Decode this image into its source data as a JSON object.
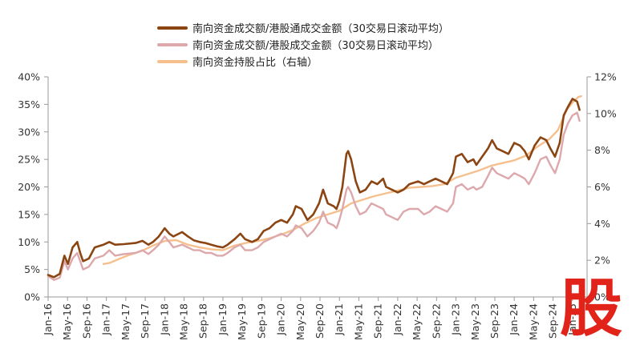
{
  "chart_data": {
    "type": "line",
    "title": "",
    "xlabel": "",
    "ylabel": "",
    "ylim": [
      0,
      40
    ],
    "y2lim": [
      0,
      12
    ],
    "y_ticks": [
      "0%",
      "5%",
      "10%",
      "15%",
      "20%",
      "25%",
      "30%",
      "35%",
      "40%"
    ],
    "y2_ticks": [
      "0%",
      "2%",
      "4%",
      "6%",
      "8%",
      "10%",
      "12%"
    ],
    "x_ticks": [
      "Jan-16",
      "May-16",
      "Sep-16",
      "Jan-17",
      "May-17",
      "Sep-17",
      "Jan-18",
      "May-18",
      "Sep-18",
      "Jan-19",
      "May-19",
      "Sep-19",
      "Jan-20",
      "May-20",
      "Sep-20",
      "Jan-21",
      "May-21",
      "Sep-21",
      "Jan-22",
      "May-22",
      "Sep-22",
      "Jan-23",
      "May-23",
      "Sep-23",
      "Jan-24",
      "May-24",
      "Sep-24",
      "Jan-25"
    ],
    "x_range": [
      2016.0,
      2025.25
    ],
    "series": [
      {
        "name": "南向资金成交额/港股通成交金额（30交易日滚动平均）",
        "axis": "left",
        "color": "#8b4513",
        "points": [
          [
            2016.0,
            4.0
          ],
          [
            2016.1,
            3.6
          ],
          [
            2016.2,
            4.2
          ],
          [
            2016.28,
            7.5
          ],
          [
            2016.34,
            6.0
          ],
          [
            2016.42,
            9.0
          ],
          [
            2016.5,
            10.0
          ],
          [
            2016.55,
            8.0
          ],
          [
            2016.6,
            6.5
          ],
          [
            2016.7,
            7.0
          ],
          [
            2016.8,
            9.0
          ],
          [
            2016.95,
            9.5
          ],
          [
            2017.05,
            10.0
          ],
          [
            2017.15,
            9.5
          ],
          [
            2017.3,
            9.6
          ],
          [
            2017.5,
            9.8
          ],
          [
            2017.62,
            10.2
          ],
          [
            2017.72,
            9.5
          ],
          [
            2017.8,
            10.0
          ],
          [
            2017.9,
            11.0
          ],
          [
            2018.0,
            12.5
          ],
          [
            2018.08,
            11.5
          ],
          [
            2018.15,
            11.0
          ],
          [
            2018.3,
            11.8
          ],
          [
            2018.4,
            11.0
          ],
          [
            2018.5,
            10.3
          ],
          [
            2018.6,
            10.0
          ],
          [
            2018.7,
            9.8
          ],
          [
            2018.8,
            9.5
          ],
          [
            2018.9,
            9.2
          ],
          [
            2019.0,
            9.0
          ],
          [
            2019.08,
            9.5
          ],
          [
            2019.2,
            10.5
          ],
          [
            2019.3,
            11.5
          ],
          [
            2019.38,
            10.5
          ],
          [
            2019.5,
            10.0
          ],
          [
            2019.6,
            10.5
          ],
          [
            2019.7,
            12.0
          ],
          [
            2019.8,
            12.5
          ],
          [
            2019.9,
            13.5
          ],
          [
            2020.0,
            14.0
          ],
          [
            2020.1,
            13.5
          ],
          [
            2020.2,
            15.0
          ],
          [
            2020.25,
            16.5
          ],
          [
            2020.35,
            16.0
          ],
          [
            2020.45,
            14.0
          ],
          [
            2020.55,
            15.0
          ],
          [
            2020.65,
            17.0
          ],
          [
            2020.72,
            19.5
          ],
          [
            2020.8,
            17.0
          ],
          [
            2020.9,
            16.5
          ],
          [
            2020.95,
            16.0
          ],
          [
            2021.0,
            17.5
          ],
          [
            2021.05,
            20.0
          ],
          [
            2021.12,
            26.0
          ],
          [
            2021.15,
            26.5
          ],
          [
            2021.2,
            25.0
          ],
          [
            2021.28,
            21.0
          ],
          [
            2021.35,
            19.0
          ],
          [
            2021.45,
            19.5
          ],
          [
            2021.55,
            21.0
          ],
          [
            2021.65,
            20.5
          ],
          [
            2021.75,
            21.5
          ],
          [
            2021.8,
            20.0
          ],
          [
            2021.9,
            19.5
          ],
          [
            2022.0,
            19.0
          ],
          [
            2022.1,
            19.5
          ],
          [
            2022.2,
            20.5
          ],
          [
            2022.35,
            21.0
          ],
          [
            2022.45,
            20.5
          ],
          [
            2022.55,
            21.0
          ],
          [
            2022.65,
            21.5
          ],
          [
            2022.75,
            21.0
          ],
          [
            2022.85,
            20.5
          ],
          [
            2022.95,
            22.5
          ],
          [
            2023.0,
            25.5
          ],
          [
            2023.1,
            26.0
          ],
          [
            2023.2,
            24.5
          ],
          [
            2023.3,
            25.0
          ],
          [
            2023.35,
            24.0
          ],
          [
            2023.45,
            25.5
          ],
          [
            2023.55,
            27.0
          ],
          [
            2023.62,
            28.5
          ],
          [
            2023.7,
            27.0
          ],
          [
            2023.8,
            26.5
          ],
          [
            2023.9,
            26.0
          ],
          [
            2024.0,
            28.0
          ],
          [
            2024.1,
            27.5
          ],
          [
            2024.18,
            26.5
          ],
          [
            2024.25,
            25.0
          ],
          [
            2024.35,
            27.5
          ],
          [
            2024.45,
            29.0
          ],
          [
            2024.55,
            28.5
          ],
          [
            2024.62,
            27.0
          ],
          [
            2024.7,
            25.5
          ],
          [
            2024.78,
            28.0
          ],
          [
            2024.85,
            33.0
          ],
          [
            2024.92,
            34.5
          ],
          [
            2025.0,
            36.0
          ],
          [
            2025.08,
            35.5
          ],
          [
            2025.12,
            34.0
          ]
        ]
      },
      {
        "name": "南向资金成交额/港股成交金额（30交易日滚动平均）",
        "axis": "left",
        "color": "#dda8ac",
        "points": [
          [
            2016.0,
            3.8
          ],
          [
            2016.1,
            3.1
          ],
          [
            2016.2,
            3.5
          ],
          [
            2016.28,
            6.5
          ],
          [
            2016.34,
            5.0
          ],
          [
            2016.42,
            7.0
          ],
          [
            2016.5,
            8.0
          ],
          [
            2016.55,
            6.5
          ],
          [
            2016.6,
            5.0
          ],
          [
            2016.7,
            5.5
          ],
          [
            2016.8,
            7.0
          ],
          [
            2016.95,
            7.5
          ],
          [
            2017.05,
            8.5
          ],
          [
            2017.15,
            7.5
          ],
          [
            2017.3,
            7.8
          ],
          [
            2017.5,
            8.0
          ],
          [
            2017.62,
            8.5
          ],
          [
            2017.72,
            7.8
          ],
          [
            2017.8,
            8.5
          ],
          [
            2017.9,
            9.5
          ],
          [
            2018.0,
            11.0
          ],
          [
            2018.08,
            10.0
          ],
          [
            2018.15,
            9.0
          ],
          [
            2018.3,
            9.5
          ],
          [
            2018.4,
            9.0
          ],
          [
            2018.5,
            8.5
          ],
          [
            2018.6,
            8.5
          ],
          [
            2018.7,
            8.0
          ],
          [
            2018.8,
            8.0
          ],
          [
            2018.9,
            7.5
          ],
          [
            2019.0,
            7.5
          ],
          [
            2019.08,
            8.0
          ],
          [
            2019.2,
            9.0
          ],
          [
            2019.3,
            9.5
          ],
          [
            2019.38,
            8.5
          ],
          [
            2019.5,
            8.5
          ],
          [
            2019.6,
            9.0
          ],
          [
            2019.7,
            10.0
          ],
          [
            2019.8,
            10.5
          ],
          [
            2019.9,
            11.0
          ],
          [
            2020.0,
            11.5
          ],
          [
            2020.1,
            11.0
          ],
          [
            2020.2,
            12.0
          ],
          [
            2020.25,
            13.0
          ],
          [
            2020.35,
            12.5
          ],
          [
            2020.45,
            11.0
          ],
          [
            2020.55,
            12.0
          ],
          [
            2020.65,
            13.5
          ],
          [
            2020.72,
            15.5
          ],
          [
            2020.8,
            13.5
          ],
          [
            2020.9,
            13.0
          ],
          [
            2020.95,
            12.5
          ],
          [
            2021.0,
            14.0
          ],
          [
            2021.05,
            16.0
          ],
          [
            2021.12,
            19.5
          ],
          [
            2021.15,
            20.0
          ],
          [
            2021.2,
            19.0
          ],
          [
            2021.28,
            16.5
          ],
          [
            2021.35,
            15.0
          ],
          [
            2021.45,
            15.5
          ],
          [
            2021.55,
            17.0
          ],
          [
            2021.65,
            16.5
          ],
          [
            2021.75,
            16.0
          ],
          [
            2021.8,
            15.0
          ],
          [
            2021.9,
            14.5
          ],
          [
            2022.0,
            14.0
          ],
          [
            2022.1,
            15.5
          ],
          [
            2022.2,
            16.0
          ],
          [
            2022.35,
            16.0
          ],
          [
            2022.45,
            15.0
          ],
          [
            2022.55,
            15.5
          ],
          [
            2022.65,
            16.5
          ],
          [
            2022.75,
            16.0
          ],
          [
            2022.85,
            15.5
          ],
          [
            2022.95,
            17.0
          ],
          [
            2023.0,
            20.0
          ],
          [
            2023.1,
            20.5
          ],
          [
            2023.2,
            19.5
          ],
          [
            2023.3,
            20.0
          ],
          [
            2023.35,
            19.5
          ],
          [
            2023.45,
            20.0
          ],
          [
            2023.55,
            22.0
          ],
          [
            2023.62,
            23.5
          ],
          [
            2023.7,
            22.5
          ],
          [
            2023.8,
            22.0
          ],
          [
            2023.9,
            21.5
          ],
          [
            2024.0,
            22.5
          ],
          [
            2024.1,
            22.0
          ],
          [
            2024.18,
            21.5
          ],
          [
            2024.25,
            20.5
          ],
          [
            2024.35,
            22.5
          ],
          [
            2024.45,
            25.0
          ],
          [
            2024.55,
            25.5
          ],
          [
            2024.62,
            24.0
          ],
          [
            2024.7,
            22.5
          ],
          [
            2024.78,
            25.0
          ],
          [
            2024.85,
            29.5
          ],
          [
            2024.92,
            31.5
          ],
          [
            2025.0,
            33.0
          ],
          [
            2025.08,
            33.5
          ],
          [
            2025.12,
            32.0
          ]
        ]
      },
      {
        "name": "南向资金持股占比（右轴）",
        "axis": "right",
        "color": "#f5c08e",
        "points": [
          [
            2016.95,
            1.8
          ],
          [
            2017.05,
            1.85
          ],
          [
            2017.2,
            2.05
          ],
          [
            2017.4,
            2.3
          ],
          [
            2017.6,
            2.5
          ],
          [
            2017.8,
            2.8
          ],
          [
            2018.0,
            3.05
          ],
          [
            2018.2,
            3.1
          ],
          [
            2018.4,
            2.85
          ],
          [
            2018.6,
            2.7
          ],
          [
            2018.8,
            2.6
          ],
          [
            2019.0,
            2.55
          ],
          [
            2019.2,
            2.8
          ],
          [
            2019.4,
            2.95
          ],
          [
            2019.6,
            3.05
          ],
          [
            2019.8,
            3.2
          ],
          [
            2020.0,
            3.4
          ],
          [
            2020.2,
            3.65
          ],
          [
            2020.4,
            4.0
          ],
          [
            2020.6,
            4.3
          ],
          [
            2020.8,
            4.5
          ],
          [
            2021.0,
            4.7
          ],
          [
            2021.2,
            5.1
          ],
          [
            2021.4,
            5.3
          ],
          [
            2021.6,
            5.5
          ],
          [
            2021.8,
            5.65
          ],
          [
            2022.0,
            5.8
          ],
          [
            2022.2,
            5.95
          ],
          [
            2022.4,
            6.0
          ],
          [
            2022.6,
            6.05
          ],
          [
            2022.8,
            6.15
          ],
          [
            2023.0,
            6.5
          ],
          [
            2023.2,
            6.7
          ],
          [
            2023.4,
            6.9
          ],
          [
            2023.6,
            7.15
          ],
          [
            2023.8,
            7.3
          ],
          [
            2024.0,
            7.45
          ],
          [
            2024.2,
            7.7
          ],
          [
            2024.4,
            8.2
          ],
          [
            2024.6,
            8.6
          ],
          [
            2024.75,
            9.1
          ],
          [
            2024.9,
            10.2
          ],
          [
            2025.0,
            10.6
          ],
          [
            2025.1,
            10.9
          ],
          [
            2025.15,
            10.95
          ]
        ]
      }
    ],
    "legend_position": "top-center"
  },
  "watermark": {
    "text": "股",
    "color": "#e2231a"
  }
}
